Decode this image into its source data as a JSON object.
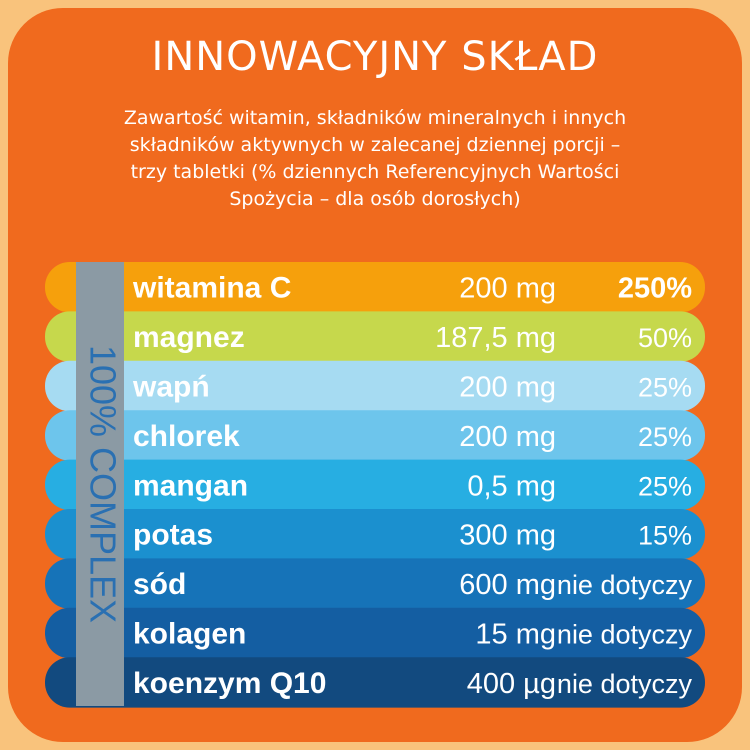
{
  "header": {
    "title": "INNOWACYJNY SKŁAD",
    "subtitle": [
      "Zawartość witamin, składników mineralnych i innych",
      "składników aktywnych w zalecanej dziennej porcji –",
      "trzy tabletki (% dziennych Referencyjnych Wartości",
      "Spożycia – dla osób dorosłych)"
    ]
  },
  "side_label": "100% COMPLEX",
  "table": {
    "rows": [
      {
        "name": "witamina C",
        "amount": "200 mg",
        "percent": "250%",
        "color": "#f6a00c"
      },
      {
        "name": "magnez",
        "amount": "187,5 mg",
        "percent": "50%",
        "color": "#c6d84c"
      },
      {
        "name": "wapń",
        "amount": "200 mg",
        "percent": "25%",
        "color": "#a6dbf2"
      },
      {
        "name": "chlorek",
        "amount": "200 mg",
        "percent": "25%",
        "color": "#6dc5ec"
      },
      {
        "name": "mangan",
        "amount": "0,5 mg",
        "percent": "25%",
        "color": "#27aee2"
      },
      {
        "name": "potas",
        "amount": "300 mg",
        "percent": "15%",
        "color": "#1b90cf"
      },
      {
        "name": "sód",
        "amount": "600 mg",
        "percent": "nie dotyczy",
        "color": "#1673b8"
      },
      {
        "name": "kolagen",
        "amount": "15 mg",
        "percent": "nie dotyczy",
        "color": "#145ea2"
      },
      {
        "name": "koenzym Q10",
        "amount": "400 µg",
        "percent": "nie dotyczy",
        "color": "#124a7f"
      }
    ]
  }
}
